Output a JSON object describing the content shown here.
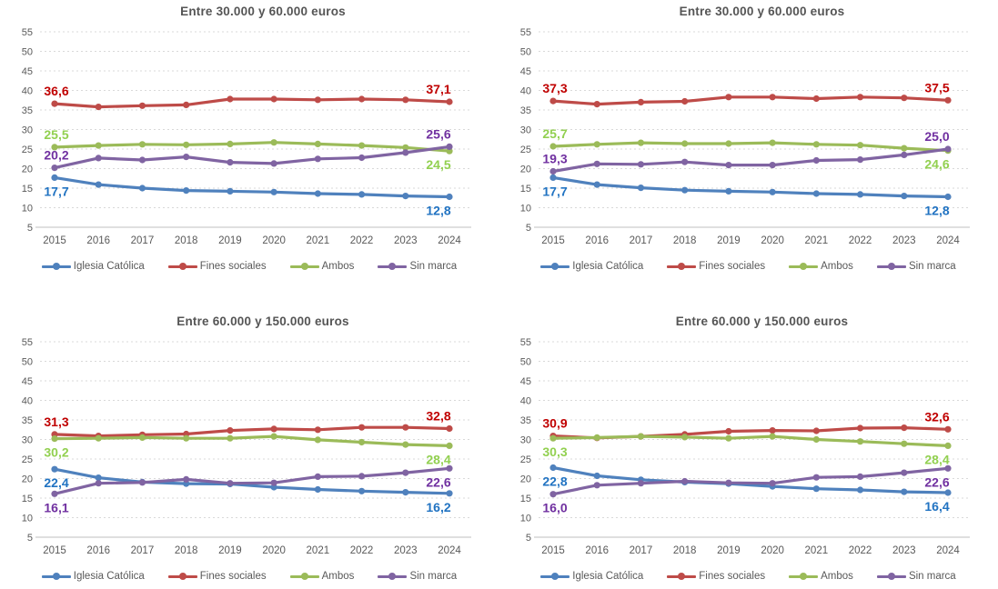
{
  "styles": {
    "gridline_color": "#d9d9d9",
    "axis_line_color": "#bfbfbf",
    "axis_text_color": "#595959",
    "title_color": "#555555"
  },
  "chart_data": [
    {
      "type": "line",
      "title": "Entre 30.000 y 60.000 euros",
      "x": [
        "2015",
        "2016",
        "2017",
        "2018",
        "2019",
        "2020",
        "2021",
        "2022",
        "2023",
        "2024"
      ],
      "ylim": [
        5,
        55
      ],
      "ytick_step": 5,
      "grid": "horizontal-dashed",
      "legend_position": "bottom",
      "series": [
        {
          "name": "Iglesia Católica",
          "color": "#4f81bd",
          "label_color": "#2173c2",
          "values": [
            17.7,
            15.9,
            15.0,
            14.4,
            14.2,
            14.0,
            13.6,
            13.4,
            13.0,
            12.8
          ],
          "start_label": {
            "text": "17,7",
            "pos": "below"
          },
          "end_label": {
            "text": "12,8",
            "pos": "below"
          }
        },
        {
          "name": "Fines sociales",
          "color": "#be4b48",
          "label_color": "#c00000",
          "values": [
            36.6,
            35.8,
            36.1,
            36.3,
            37.8,
            37.8,
            37.6,
            37.8,
            37.6,
            37.1
          ],
          "start_label": {
            "text": "36,6",
            "pos": "above"
          },
          "end_label": {
            "text": "37,1",
            "pos": "above"
          }
        },
        {
          "name": "Ambos",
          "color": "#9bbb59",
          "label_color": "#92d050",
          "values": [
            25.5,
            25.9,
            26.2,
            26.1,
            26.3,
            26.7,
            26.3,
            25.9,
            25.4,
            24.5
          ],
          "start_label": {
            "text": "25,5",
            "pos": "above"
          },
          "end_label": {
            "text": "24,5",
            "pos": "below"
          }
        },
        {
          "name": "Sin marca",
          "color": "#8064a2",
          "label_color": "#7030a0",
          "values": [
            20.2,
            22.7,
            22.2,
            23.0,
            21.6,
            21.3,
            22.5,
            22.8,
            24.1,
            25.6
          ],
          "start_label": {
            "text": "20,2",
            "pos": "above"
          },
          "end_label": {
            "text": "25,6",
            "pos": "above"
          }
        }
      ]
    },
    {
      "type": "line",
      "title": "Entre 30.000 y 60.000 euros",
      "x": [
        "2015",
        "2016",
        "2017",
        "2018",
        "2019",
        "2020",
        "2021",
        "2022",
        "2023",
        "2024"
      ],
      "ylim": [
        5,
        55
      ],
      "ytick_step": 5,
      "grid": "horizontal-dashed",
      "legend_position": "bottom",
      "series": [
        {
          "name": "Iglesia Católica",
          "color": "#4f81bd",
          "label_color": "#2173c2",
          "values": [
            17.7,
            15.9,
            15.1,
            14.5,
            14.2,
            14.0,
            13.6,
            13.4,
            13.0,
            12.8
          ],
          "start_label": {
            "text": "17,7",
            "pos": "below"
          },
          "end_label": {
            "text": "12,8",
            "pos": "below"
          }
        },
        {
          "name": "Fines sociales",
          "color": "#be4b48",
          "label_color": "#c00000",
          "values": [
            37.3,
            36.5,
            37.0,
            37.2,
            38.3,
            38.3,
            37.9,
            38.3,
            38.1,
            37.5
          ],
          "start_label": {
            "text": "37,3",
            "pos": "above"
          },
          "end_label": {
            "text": "37,5",
            "pos": "above"
          }
        },
        {
          "name": "Ambos",
          "color": "#9bbb59",
          "label_color": "#92d050",
          "values": [
            25.7,
            26.2,
            26.6,
            26.4,
            26.4,
            26.6,
            26.2,
            26.0,
            25.2,
            24.6
          ],
          "start_label": {
            "text": "25,7",
            "pos": "above"
          },
          "end_label": {
            "text": "24,6",
            "pos": "below"
          }
        },
        {
          "name": "Sin marca",
          "color": "#8064a2",
          "label_color": "#7030a0",
          "values": [
            19.3,
            21.2,
            21.1,
            21.7,
            20.9,
            20.9,
            22.1,
            22.3,
            23.5,
            25.0
          ],
          "start_label": {
            "text": "19,3",
            "pos": "above"
          },
          "end_label": {
            "text": "25,0",
            "pos": "above"
          }
        }
      ]
    },
    {
      "type": "line",
      "title": "Entre 60.000 y 150.000 euros",
      "x": [
        "2015",
        "2016",
        "2017",
        "2018",
        "2019",
        "2020",
        "2021",
        "2022",
        "2023",
        "2024"
      ],
      "ylim": [
        5,
        55
      ],
      "ytick_step": 5,
      "grid": "horizontal-dashed",
      "legend_position": "bottom",
      "series": [
        {
          "name": "Iglesia Católica",
          "color": "#4f81bd",
          "label_color": "#2173c2",
          "values": [
            22.4,
            20.2,
            19.1,
            18.7,
            18.6,
            17.8,
            17.2,
            16.8,
            16.5,
            16.2
          ],
          "start_label": {
            "text": "22,4",
            "pos": "below"
          },
          "end_label": {
            "text": "16,2",
            "pos": "below"
          }
        },
        {
          "name": "Fines sociales",
          "color": "#be4b48",
          "label_color": "#c00000",
          "values": [
            31.3,
            30.9,
            31.2,
            31.4,
            32.3,
            32.7,
            32.5,
            33.1,
            33.1,
            32.8
          ],
          "start_label": {
            "text": "31,3",
            "pos": "above"
          },
          "end_label": {
            "text": "32,8",
            "pos": "above"
          }
        },
        {
          "name": "Ambos",
          "color": "#9bbb59",
          "label_color": "#92d050",
          "values": [
            30.2,
            30.3,
            30.5,
            30.3,
            30.3,
            30.8,
            29.9,
            29.3,
            28.7,
            28.4
          ],
          "start_label": {
            "text": "30,2",
            "pos": "below"
          },
          "end_label": {
            "text": "28,4",
            "pos": "below"
          }
        },
        {
          "name": "Sin marca",
          "color": "#8064a2",
          "label_color": "#7030a0",
          "values": [
            16.1,
            18.8,
            19.0,
            19.8,
            18.8,
            18.9,
            20.5,
            20.6,
            21.5,
            22.6
          ],
          "start_label": {
            "text": "16,1",
            "pos": "below"
          },
          "end_label": {
            "text": "22,6",
            "pos": "below"
          }
        }
      ]
    },
    {
      "type": "line",
      "title": "Entre 60.000 y 150.000 euros",
      "x": [
        "2015",
        "2016",
        "2017",
        "2018",
        "2019",
        "2020",
        "2021",
        "2022",
        "2023",
        "2024"
      ],
      "ylim": [
        5,
        55
      ],
      "ytick_step": 5,
      "grid": "horizontal-dashed",
      "legend_position": "bottom",
      "series": [
        {
          "name": "Iglesia Católica",
          "color": "#4f81bd",
          "label_color": "#2173c2",
          "values": [
            22.8,
            20.7,
            19.7,
            19.1,
            18.7,
            18.0,
            17.4,
            17.1,
            16.6,
            16.4
          ],
          "start_label": {
            "text": "22,8",
            "pos": "below"
          },
          "end_label": {
            "text": "16,4",
            "pos": "below"
          }
        },
        {
          "name": "Fines sociales",
          "color": "#be4b48",
          "label_color": "#c00000",
          "values": [
            30.9,
            30.4,
            30.8,
            31.3,
            32.1,
            32.3,
            32.2,
            32.9,
            33.0,
            32.6
          ],
          "start_label": {
            "text": "30,9",
            "pos": "above"
          },
          "end_label": {
            "text": "32,6",
            "pos": "above"
          }
        },
        {
          "name": "Ambos",
          "color": "#9bbb59",
          "label_color": "#92d050",
          "values": [
            30.3,
            30.5,
            30.8,
            30.6,
            30.3,
            30.8,
            30.0,
            29.5,
            28.9,
            28.4
          ],
          "start_label": {
            "text": "30,3",
            "pos": "below"
          },
          "end_label": {
            "text": "28,4",
            "pos": "below"
          }
        },
        {
          "name": "Sin marca",
          "color": "#8064a2",
          "label_color": "#7030a0",
          "values": [
            16.0,
            18.3,
            18.8,
            19.3,
            18.9,
            18.8,
            20.3,
            20.5,
            21.5,
            22.6
          ],
          "start_label": {
            "text": "16,0",
            "pos": "below"
          },
          "end_label": {
            "text": "22,6",
            "pos": "below"
          }
        }
      ]
    }
  ]
}
